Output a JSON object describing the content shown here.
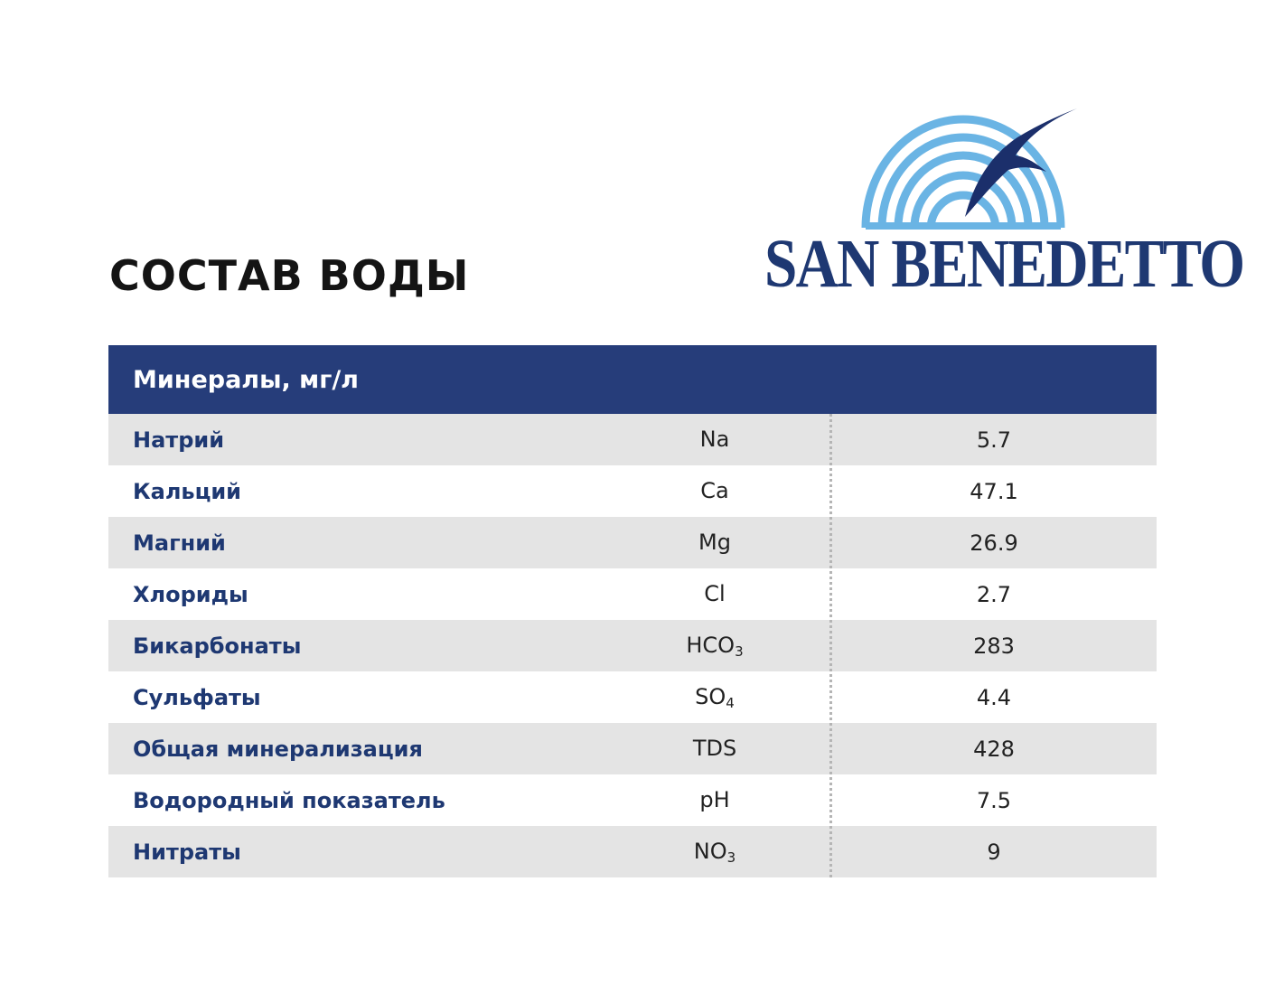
{
  "title": "СОСТАВ ВОДЫ",
  "logo": {
    "text": "SAN BENEDETTO",
    "colors": {
      "arch": "#6ab4e4",
      "bird": "#1b2f6b",
      "text": "#1e3872"
    }
  },
  "table": {
    "header": "Минералы, мг/л",
    "rows": [
      {
        "name": "Натрий",
        "symbol": "Na",
        "sub": "",
        "value": "5.7"
      },
      {
        "name": "Кальций",
        "symbol": "Ca",
        "sub": "",
        "value": "47.1"
      },
      {
        "name": "Магний",
        "symbol": "Mg",
        "sub": "",
        "value": "26.9"
      },
      {
        "name": "Хлориды",
        "symbol": "Cl",
        "sub": "",
        "value": "2.7"
      },
      {
        "name": "Бикарбонаты",
        "symbol": "HCO",
        "sub": "3",
        "value": "283"
      },
      {
        "name": "Сульфаты",
        "symbol": "SO",
        "sub": "4",
        "value": "4.4"
      },
      {
        "name": "Общая минерализация",
        "symbol": "TDS",
        "sub": "",
        "value": "428"
      },
      {
        "name": "Водородный показатель",
        "symbol": "pH",
        "sub": "",
        "value": "7.5"
      },
      {
        "name": "Нитраты",
        "symbol": "NO",
        "sub": "3",
        "value": "9"
      }
    ]
  },
  "colors": {
    "header_bg": "#263d7a",
    "row_shade": "#e4e4e4",
    "name_text": "#1e3872"
  }
}
